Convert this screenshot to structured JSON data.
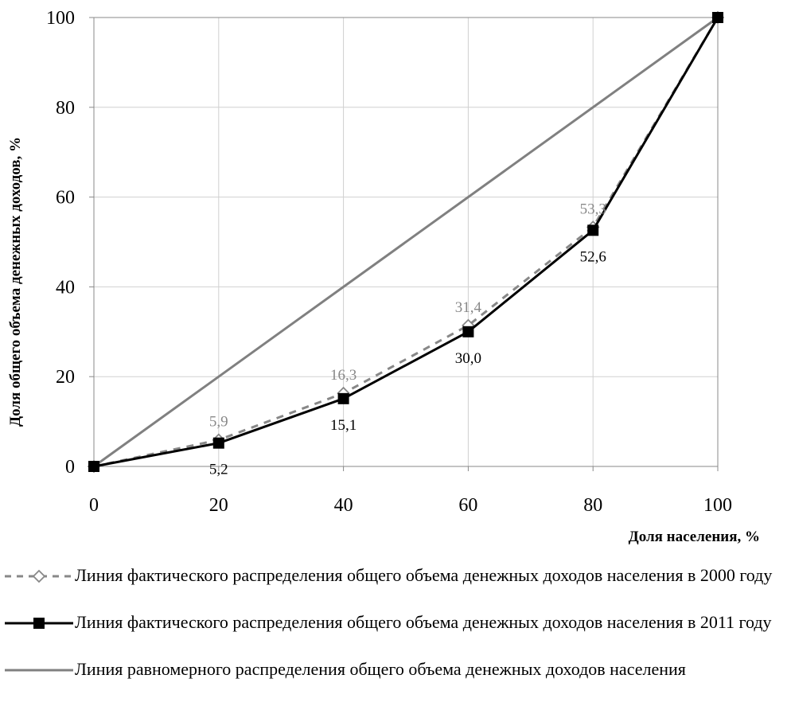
{
  "chart_data": {
    "type": "line",
    "xlabel": "Доля населения, %",
    "ylabel": "Доля общего объема денежных доходов, %",
    "xlim": [
      0,
      100
    ],
    "ylim": [
      0,
      100
    ],
    "x_ticks": [
      "0",
      "20",
      "40",
      "60",
      "80",
      "100"
    ],
    "y_ticks": [
      "0",
      "20",
      "40",
      "60",
      "80",
      "100"
    ],
    "grid": true,
    "legend_position": "bottom",
    "series": [
      {
        "name": "Линия фактического распределения общего объема денежных доходов населения в 2000  году",
        "x": [
          0,
          20,
          40,
          60,
          80,
          100
        ],
        "y": [
          0,
          5.9,
          16.3,
          31.4,
          53.3,
          100
        ],
        "labels": [
          "",
          "5,9",
          "16,3",
          "31,4",
          "53,3",
          ""
        ],
        "color": "#888888",
        "style": "dashed",
        "marker": "diamond-open"
      },
      {
        "name": "Линия фактического распределения общего объема денежных доходов населения в 2011  году",
        "x": [
          0,
          20,
          40,
          60,
          80,
          100
        ],
        "y": [
          0,
          5.2,
          15.1,
          30.0,
          52.6,
          100
        ],
        "labels": [
          "",
          "5,2",
          "15,1",
          "30,0",
          "52,6",
          ""
        ],
        "color": "#000000",
        "style": "solid",
        "marker": "square-filled"
      },
      {
        "name": "Линия равномерного распределения общего объема денежных доходов населения",
        "x": [
          0,
          100
        ],
        "y": [
          0,
          100
        ],
        "color": "#808080",
        "style": "solid",
        "marker": "none"
      }
    ]
  }
}
